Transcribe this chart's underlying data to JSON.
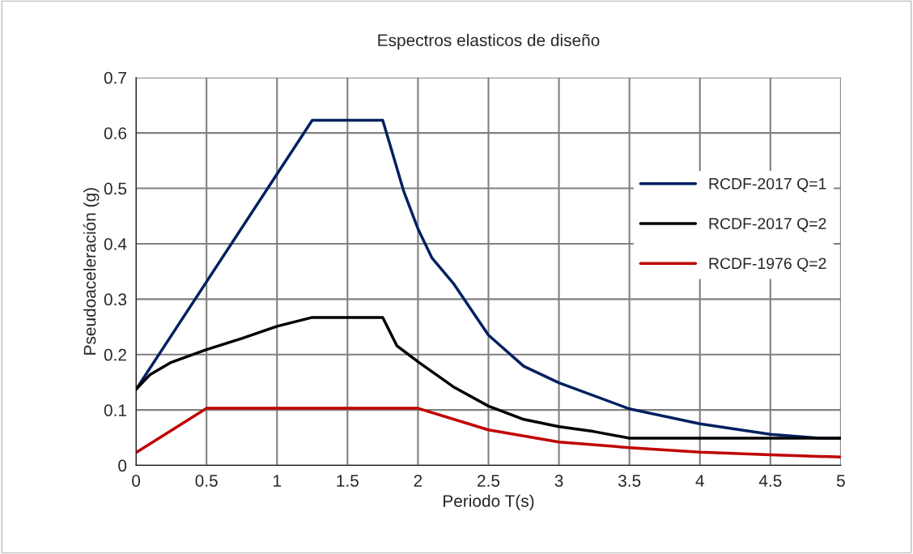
{
  "chart_data": {
    "type": "line",
    "title": "Espectros elasticos de diseño",
    "xlabel": "Periodo T(s)",
    "ylabel": "Pseudoaceleración (g)",
    "xlim": [
      0,
      5
    ],
    "xticks": [
      0,
      0.5,
      1,
      1.5,
      2,
      2.5,
      3,
      3.5,
      4,
      4.5,
      5
    ],
    "ylim": [
      0,
      0.7
    ],
    "yticks": [
      0,
      0.1,
      0.2,
      0.3,
      0.4,
      0.5,
      0.6,
      0.7
    ],
    "grid": true,
    "legend": "right",
    "marker": "none",
    "line_style": "solid",
    "series": [
      {
        "name": "RCDF-2017 Q=1",
        "color": "#002060",
        "x": [
          0,
          1.25,
          1.75,
          1.8,
          1.9,
          2,
          2.1,
          2.25,
          2.5,
          2.75,
          3,
          3.5,
          4,
          4.5,
          4.85,
          5
        ],
        "values": [
          0.137,
          0.623,
          0.623,
          0.58,
          0.494,
          0.427,
          0.374,
          0.329,
          0.235,
          0.179,
          0.149,
          0.102,
          0.075,
          0.056,
          0.049,
          0.049
        ]
      },
      {
        "name": "RCDF-2017 Q=2",
        "color": "#000000",
        "x": [
          0,
          0.1,
          0.25,
          0.5,
          0.75,
          1,
          1.25,
          1.75,
          1.85,
          2,
          2.25,
          2.5,
          2.75,
          3,
          3.25,
          3.5,
          5
        ],
        "values": [
          0.137,
          0.164,
          0.186,
          0.209,
          0.229,
          0.251,
          0.267,
          0.267,
          0.216,
          0.187,
          0.142,
          0.107,
          0.083,
          0.07,
          0.061,
          0.049,
          0.049
        ]
      },
      {
        "name": "RCDF-1976 Q=2",
        "color": "#c00000",
        "x": [
          0,
          0.25,
          0.5,
          2,
          2.5,
          3,
          3.5,
          4,
          4.5,
          5
        ],
        "values": [
          0.023,
          0.063,
          0.103,
          0.103,
          0.064,
          0.042,
          0.032,
          0.024,
          0.019,
          0.015
        ]
      }
    ]
  }
}
